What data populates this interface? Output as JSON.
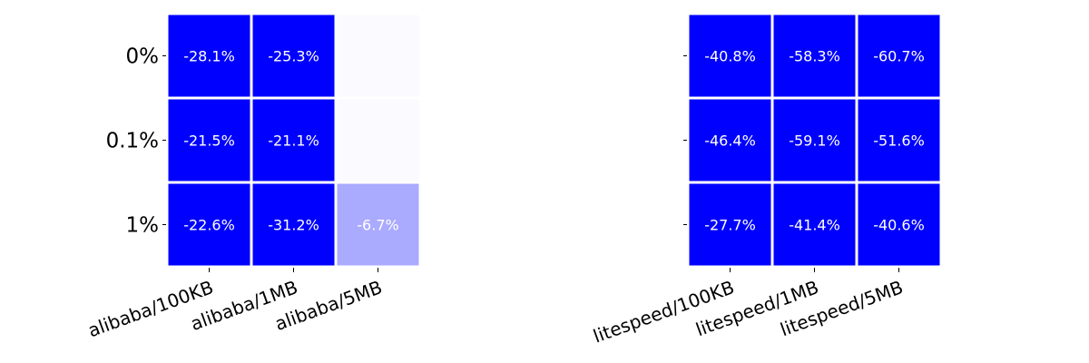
{
  "chart_data": [
    {
      "type": "heatmap",
      "title": "",
      "xlabel": "",
      "ylabel": "",
      "rows": [
        "0%",
        "0.1%",
        "1%"
      ],
      "columns": [
        "alibaba/100KB",
        "alibaba/1MB",
        "alibaba/5MB"
      ],
      "values": [
        [
          -28.1,
          -25.3,
          null
        ],
        [
          -21.5,
          -21.1,
          null
        ],
        [
          -22.6,
          -31.2,
          -6.7
        ]
      ],
      "cell_labels": [
        [
          "-28.1%",
          "-25.3%",
          ""
        ],
        [
          "-21.5%",
          "-21.1%",
          ""
        ],
        [
          "-22.6%",
          "-31.2%",
          "-6.7%"
        ]
      ],
      "color_low": "#0000ff",
      "color_high": "#ffffff",
      "show_row_labels": true
    },
    {
      "type": "heatmap",
      "title": "",
      "xlabel": "",
      "ylabel": "",
      "rows": [
        "0%",
        "0.1%",
        "1%"
      ],
      "columns": [
        "litespeed/100KB",
        "litespeed/1MB",
        "litespeed/5MB"
      ],
      "values": [
        [
          -40.8,
          -58.3,
          -60.7
        ],
        [
          -46.4,
          -59.1,
          -51.6
        ],
        [
          -27.7,
          -41.4,
          -40.6
        ]
      ],
      "cell_labels": [
        [
          "-40.8%",
          "-58.3%",
          "-60.7%"
        ],
        [
          "-46.4%",
          "-59.1%",
          "-51.6%"
        ],
        [
          "-27.7%",
          "-41.4%",
          "-40.6%"
        ]
      ],
      "color_low": "#0000ff",
      "color_high": "#ffffff",
      "show_row_labels": false
    }
  ]
}
